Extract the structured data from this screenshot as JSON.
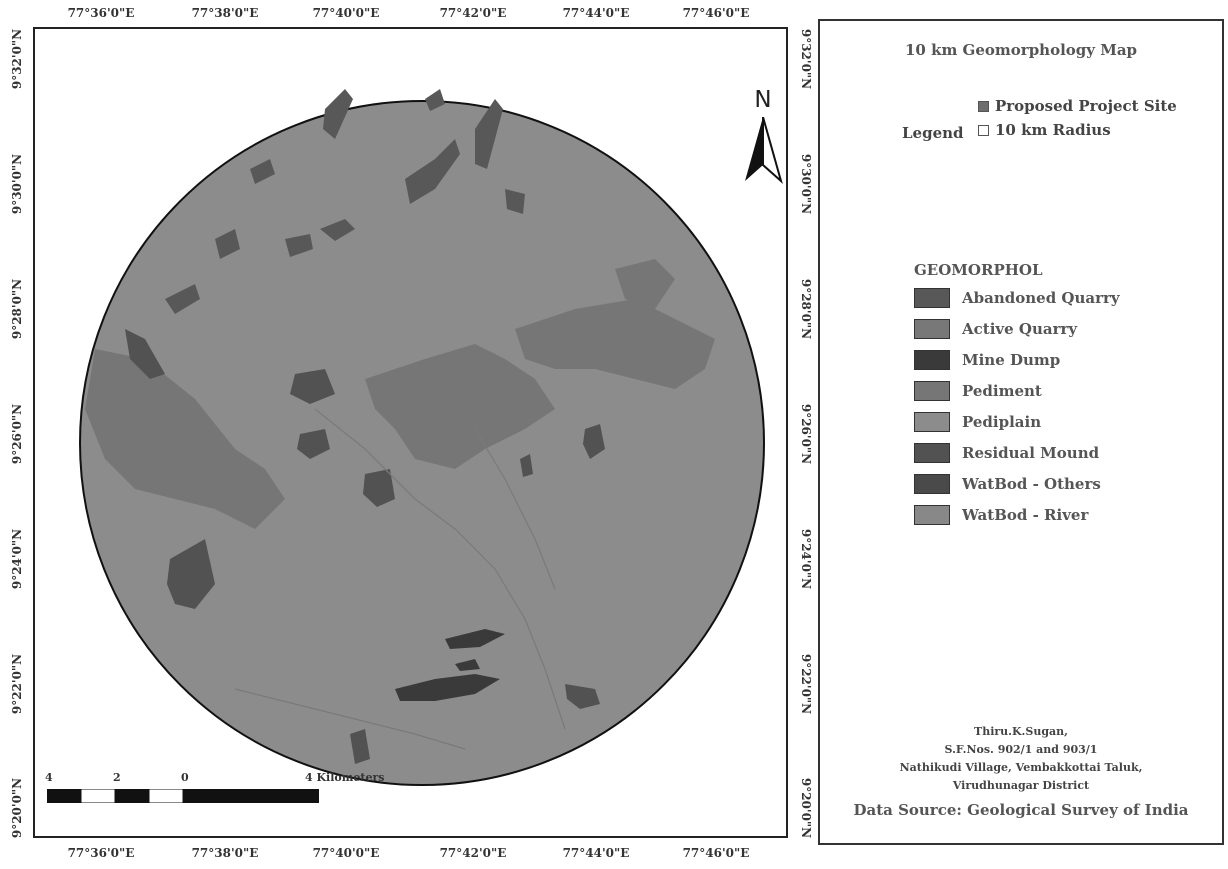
{
  "map": {
    "title": "10 km Geomorphology  Map",
    "top_lon_labels": [
      "77°36'0\"E",
      "77°38'0\"E",
      "77°40'0\"E",
      "77°42'0\"E",
      "77°44'0\"E",
      "77°46'0\"E"
    ],
    "bottom_lon_labels": [
      "77°36'0\"E",
      "77°38'0\"E",
      "77°40'0\"E",
      "77°42'0\"E",
      "77°44'0\"E",
      "77°46'0\"E"
    ],
    "left_lat_labels": [
      "9°32'0\"N",
      "9°30'0\"N",
      "9°28'0\"N",
      "9°26'0\"N",
      "9°24'0\"N",
      "9°22'0\"N",
      "9°20'0\"N"
    ],
    "right_lat_labels": [
      "9°32'0\"N",
      "9°30'0\"N",
      "9°28'0\"N",
      "9°26'0\"N",
      "9°24'0\"N",
      "9°22'0\"N",
      "9°20'0\"N"
    ],
    "north_arrow": "N",
    "scale_labels": [
      "4",
      "2",
      "0",
      "4 Kilometers"
    ]
  },
  "legend": {
    "label": "Legend",
    "items": [
      {
        "label": "Proposed Project Site",
        "color": "#6e6e6e"
      },
      {
        "label": "10 km Radius",
        "color": "#ffffff"
      }
    ]
  },
  "geomorph": {
    "heading": "GEOMORPHOL",
    "classes": [
      {
        "label": "Abandoned Quarry",
        "color": "#585858"
      },
      {
        "label": "Active Quarry",
        "color": "#787878"
      },
      {
        "label": "Mine Dump",
        "color": "#3a3a3a"
      },
      {
        "label": "Pediment",
        "color": "#767676"
      },
      {
        "label": "Pediplain",
        "color": "#8c8c8c"
      },
      {
        "label": "Residual Mound",
        "color": "#525252"
      },
      {
        "label": "WatBod - Others",
        "color": "#4a4a4a"
      },
      {
        "label": "WatBod - River",
        "color": "#888888"
      }
    ]
  },
  "address": {
    "lines": [
      "Thiru.K.Sugan,",
      "S.F.Nos. 902/1 and 903/1",
      "Nathikudi Village, Vembakkottai Taluk,",
      "Virudhunagar District"
    ]
  },
  "source": "Data Source: Geological Survey of India"
}
